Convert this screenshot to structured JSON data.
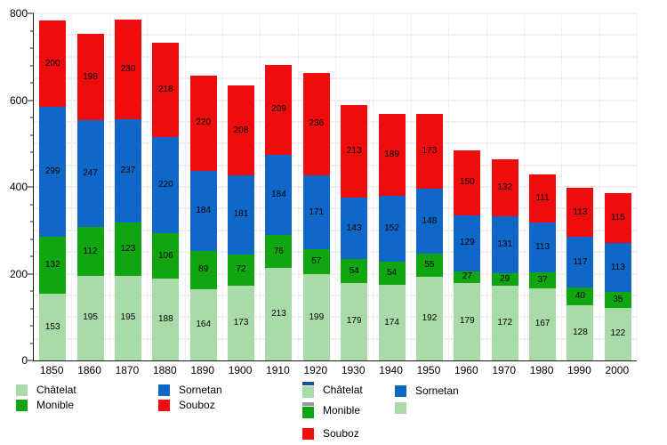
{
  "chart_data": {
    "type": "bar",
    "stacked": true,
    "title": "",
    "categories": [
      "1850",
      "1860",
      "1870",
      "1880",
      "1890",
      "1900",
      "1910",
      "1920",
      "1930",
      "1940",
      "1950",
      "1960",
      "1970",
      "1980",
      "1990",
      "2000"
    ],
    "series": [
      {
        "name": "Châtelat",
        "color": "#a9dba9",
        "values": [
          153,
          195,
          195,
          188,
          164,
          173,
          213,
          199,
          179,
          174,
          192,
          179,
          172,
          167,
          128,
          122
        ]
      },
      {
        "name": "Monible",
        "color": "#11a511",
        "values": [
          132,
          112,
          123,
          106,
          89,
          72,
          76,
          57,
          54,
          54,
          55,
          27,
          29,
          37,
          40,
          35
        ]
      },
      {
        "name": "Sornetan",
        "color": "#0f68c8",
        "values": [
          299,
          247,
          237,
          220,
          184,
          181,
          184,
          171,
          143,
          152,
          148,
          129,
          131,
          113,
          117,
          113
        ]
      },
      {
        "name": "Souboz",
        "color": "#ee0c0c",
        "values": [
          200,
          198,
          230,
          218,
          220,
          208,
          209,
          236,
          213,
          189,
          173,
          150,
          132,
          111,
          113,
          115
        ]
      }
    ],
    "ylim": [
      0,
      800
    ],
    "y_tick_labels": [
      "0",
      "200",
      "400",
      "600",
      "800"
    ],
    "y_major_step": 200,
    "y_minor_tick_step": 40,
    "gridline_step": 50,
    "grid": true,
    "show_value_labels": true,
    "legend_position": "bottom"
  },
  "legend_left": {
    "items": [
      {
        "label": "Châtelat",
        "color": "#a9dba9"
      },
      {
        "label": "Monible",
        "color": "#11a511"
      },
      {
        "label": "Sornetan",
        "color": "#0f68c8"
      },
      {
        "label": "Souboz",
        "color": "#ee0c0c"
      }
    ]
  },
  "legend_right": {
    "items": [
      {
        "label": "Châtelat",
        "color": "#a9dba9",
        "sliver": "#15519e"
      },
      {
        "label": "Monible",
        "color": "#11a511",
        "sliver": "#999999"
      },
      {
        "label": "Souboz",
        "color": "#ee0c0c"
      },
      {
        "label": "Sornetan",
        "color": "#0f68c8"
      },
      {
        "label": "",
        "color": "#a9dba9"
      }
    ]
  }
}
